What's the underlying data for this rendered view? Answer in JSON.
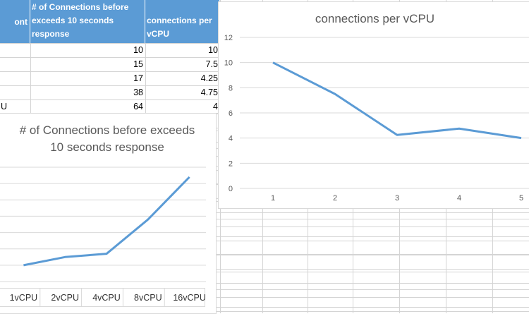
{
  "sheet": {
    "headers": [
      "ont",
      "# of Connections before exceeds 10 seconds response",
      "connections per vCPU"
    ],
    "header_lines": {
      "col2": [
        "# of Connections before",
        "exceeds 10 seconds",
        "response"
      ],
      "col3": [
        "",
        "connections per",
        "vCPU"
      ]
    },
    "rows": [
      {
        "label": "",
        "connections": "10",
        "per_vcpu": "10"
      },
      {
        "label": "",
        "connections": "15",
        "per_vcpu": "7.5"
      },
      {
        "label": "",
        "connections": "17",
        "per_vcpu": "4.25"
      },
      {
        "label": "",
        "connections": "38",
        "per_vcpu": "4.75"
      },
      {
        "label": "U",
        "connections": "64",
        "per_vcpu": "4"
      }
    ],
    "header_color": "#5b9bd5"
  },
  "chart_data": [
    {
      "type": "line",
      "title": "# of Connections before exceeds 10 seconds response",
      "title_lines": [
        "# of Connections before exceeds",
        "10 seconds response"
      ],
      "categories": [
        "1vCPU",
        "2vCPU",
        "4vCPU",
        "8vCPU",
        "16vCPU"
      ],
      "series": [
        {
          "values": [
            10,
            15,
            17,
            38,
            64
          ],
          "color": "#5b9bd5"
        }
      ],
      "ylim": [
        0,
        70
      ],
      "grid": true
    },
    {
      "type": "line",
      "title": "connections per vCPU",
      "categories": [
        "1",
        "2",
        "3",
        "4",
        "5"
      ],
      "series": [
        {
          "values": [
            10,
            7.5,
            4.25,
            4.75,
            4
          ],
          "color": "#5b9bd5"
        }
      ],
      "yticks": [
        "0",
        "2",
        "4",
        "6",
        "8",
        "10",
        "12"
      ],
      "ylim": [
        0,
        12
      ],
      "grid": true
    }
  ]
}
